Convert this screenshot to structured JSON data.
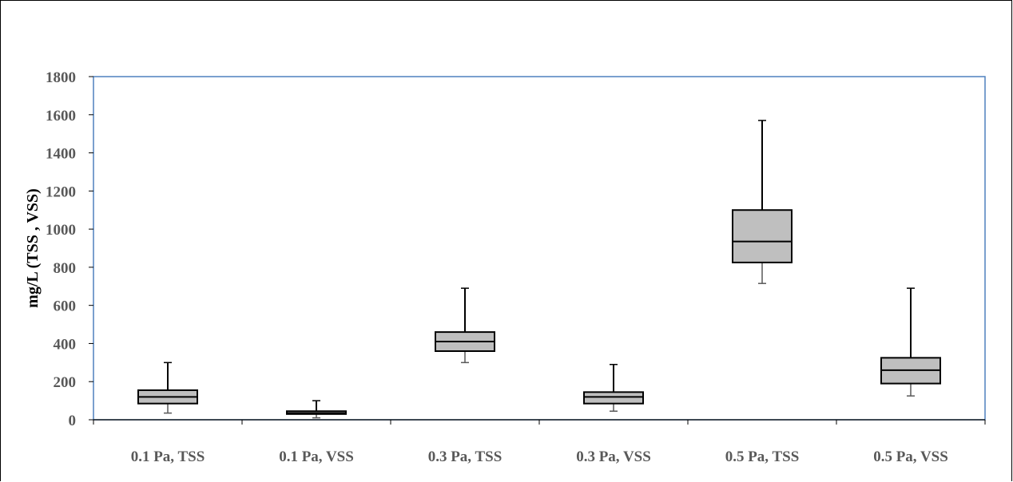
{
  "chart_data": {
    "type": "box",
    "title": "",
    "xlabel": "",
    "ylabel": "mg/L (TSS , VSS)",
    "ylim": [
      0,
      1800
    ],
    "yticks": [
      0,
      200,
      400,
      600,
      800,
      1000,
      1200,
      1400,
      1600,
      1800
    ],
    "grid": false,
    "categories": [
      "0.1 Pa, TSS",
      "0.1 Pa, VSS",
      "0.3 Pa, TSS",
      "0.3 Pa, VSS",
      "0.5 Pa, TSS",
      "0.5 Pa, VSS"
    ],
    "boxes": [
      {
        "min": 35,
        "q1": 85,
        "median": 120,
        "q3": 155,
        "max": 300
      },
      {
        "min": 10,
        "q1": 30,
        "median": 35,
        "q3": 45,
        "max": 100
      },
      {
        "min": 300,
        "q1": 360,
        "median": 410,
        "q3": 460,
        "max": 690
      },
      {
        "min": 45,
        "q1": 85,
        "median": 120,
        "q3": 145,
        "max": 290
      },
      {
        "min": 715,
        "q1": 825,
        "median": 935,
        "q3": 1100,
        "max": 1570
      },
      {
        "min": 125,
        "q1": 190,
        "median": 260,
        "q3": 325,
        "max": 690
      }
    ],
    "colors": {
      "box_fill": "#bfbfbf",
      "box_stroke": "#000000",
      "plot_border": "#4f81bd",
      "label": "#595959"
    }
  }
}
